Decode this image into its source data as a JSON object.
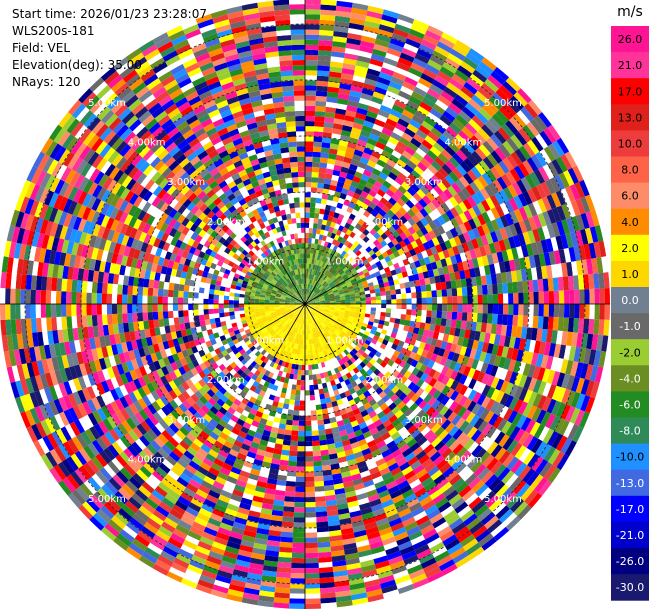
{
  "header": {
    "start_time": "Start time: 2026/01/23 23:28:07",
    "instrument": "WLS200s-181",
    "field": "Field: VEL",
    "elevation": "Elevation(deg): 35.00",
    "nrays": "NRays: 120"
  },
  "chart_data": {
    "type": "heatmap",
    "projection": "polar-ppi",
    "field": "VEL",
    "unit": "m/s",
    "elevation_deg": 35.0,
    "nrays": 120,
    "range_rings_km": [
      1.0,
      2.0,
      3.0,
      4.0,
      5.0
    ],
    "ring_labels": [
      "1.00km",
      "2.00km",
      "3.00km",
      "4.00km",
      "5.00km"
    ],
    "max_range_km": 5.5,
    "near_field": {
      "north_half": "mixed greens and dark olive, approx -8 to -2 m/s",
      "south_half": "yellow, approx 2 to 4 m/s"
    },
    "far_field": "noisy random velocities across full colour scale",
    "colorbar": {
      "label": "m/s",
      "ticks": [
        "26.0",
        "21.0",
        "17.0",
        "13.0",
        "10.0",
        "8.0",
        "6.0",
        "4.0",
        "2.0",
        "1.0",
        "0.0",
        "-1.0",
        "-2.0",
        "-4.0",
        "-6.0",
        "-8.0",
        "-10.0",
        "-13.0",
        "-17.0",
        "-21.0",
        "-26.0",
        "-30.0"
      ],
      "colors": [
        "#ff1493",
        "#ff3399",
        "#ff0000",
        "#e0201a",
        "#ee3b3b",
        "#ff6347",
        "#ff8c69",
        "#ff8c00",
        "#ffff00",
        "#ffd700",
        "#708090",
        "#696969",
        "#9acd32",
        "#6b8e23",
        "#228b22",
        "#2e8b57",
        "#1e90ff",
        "#4169e1",
        "#0000ff",
        "#0000cd",
        "#000080",
        "#191970"
      ]
    }
  }
}
